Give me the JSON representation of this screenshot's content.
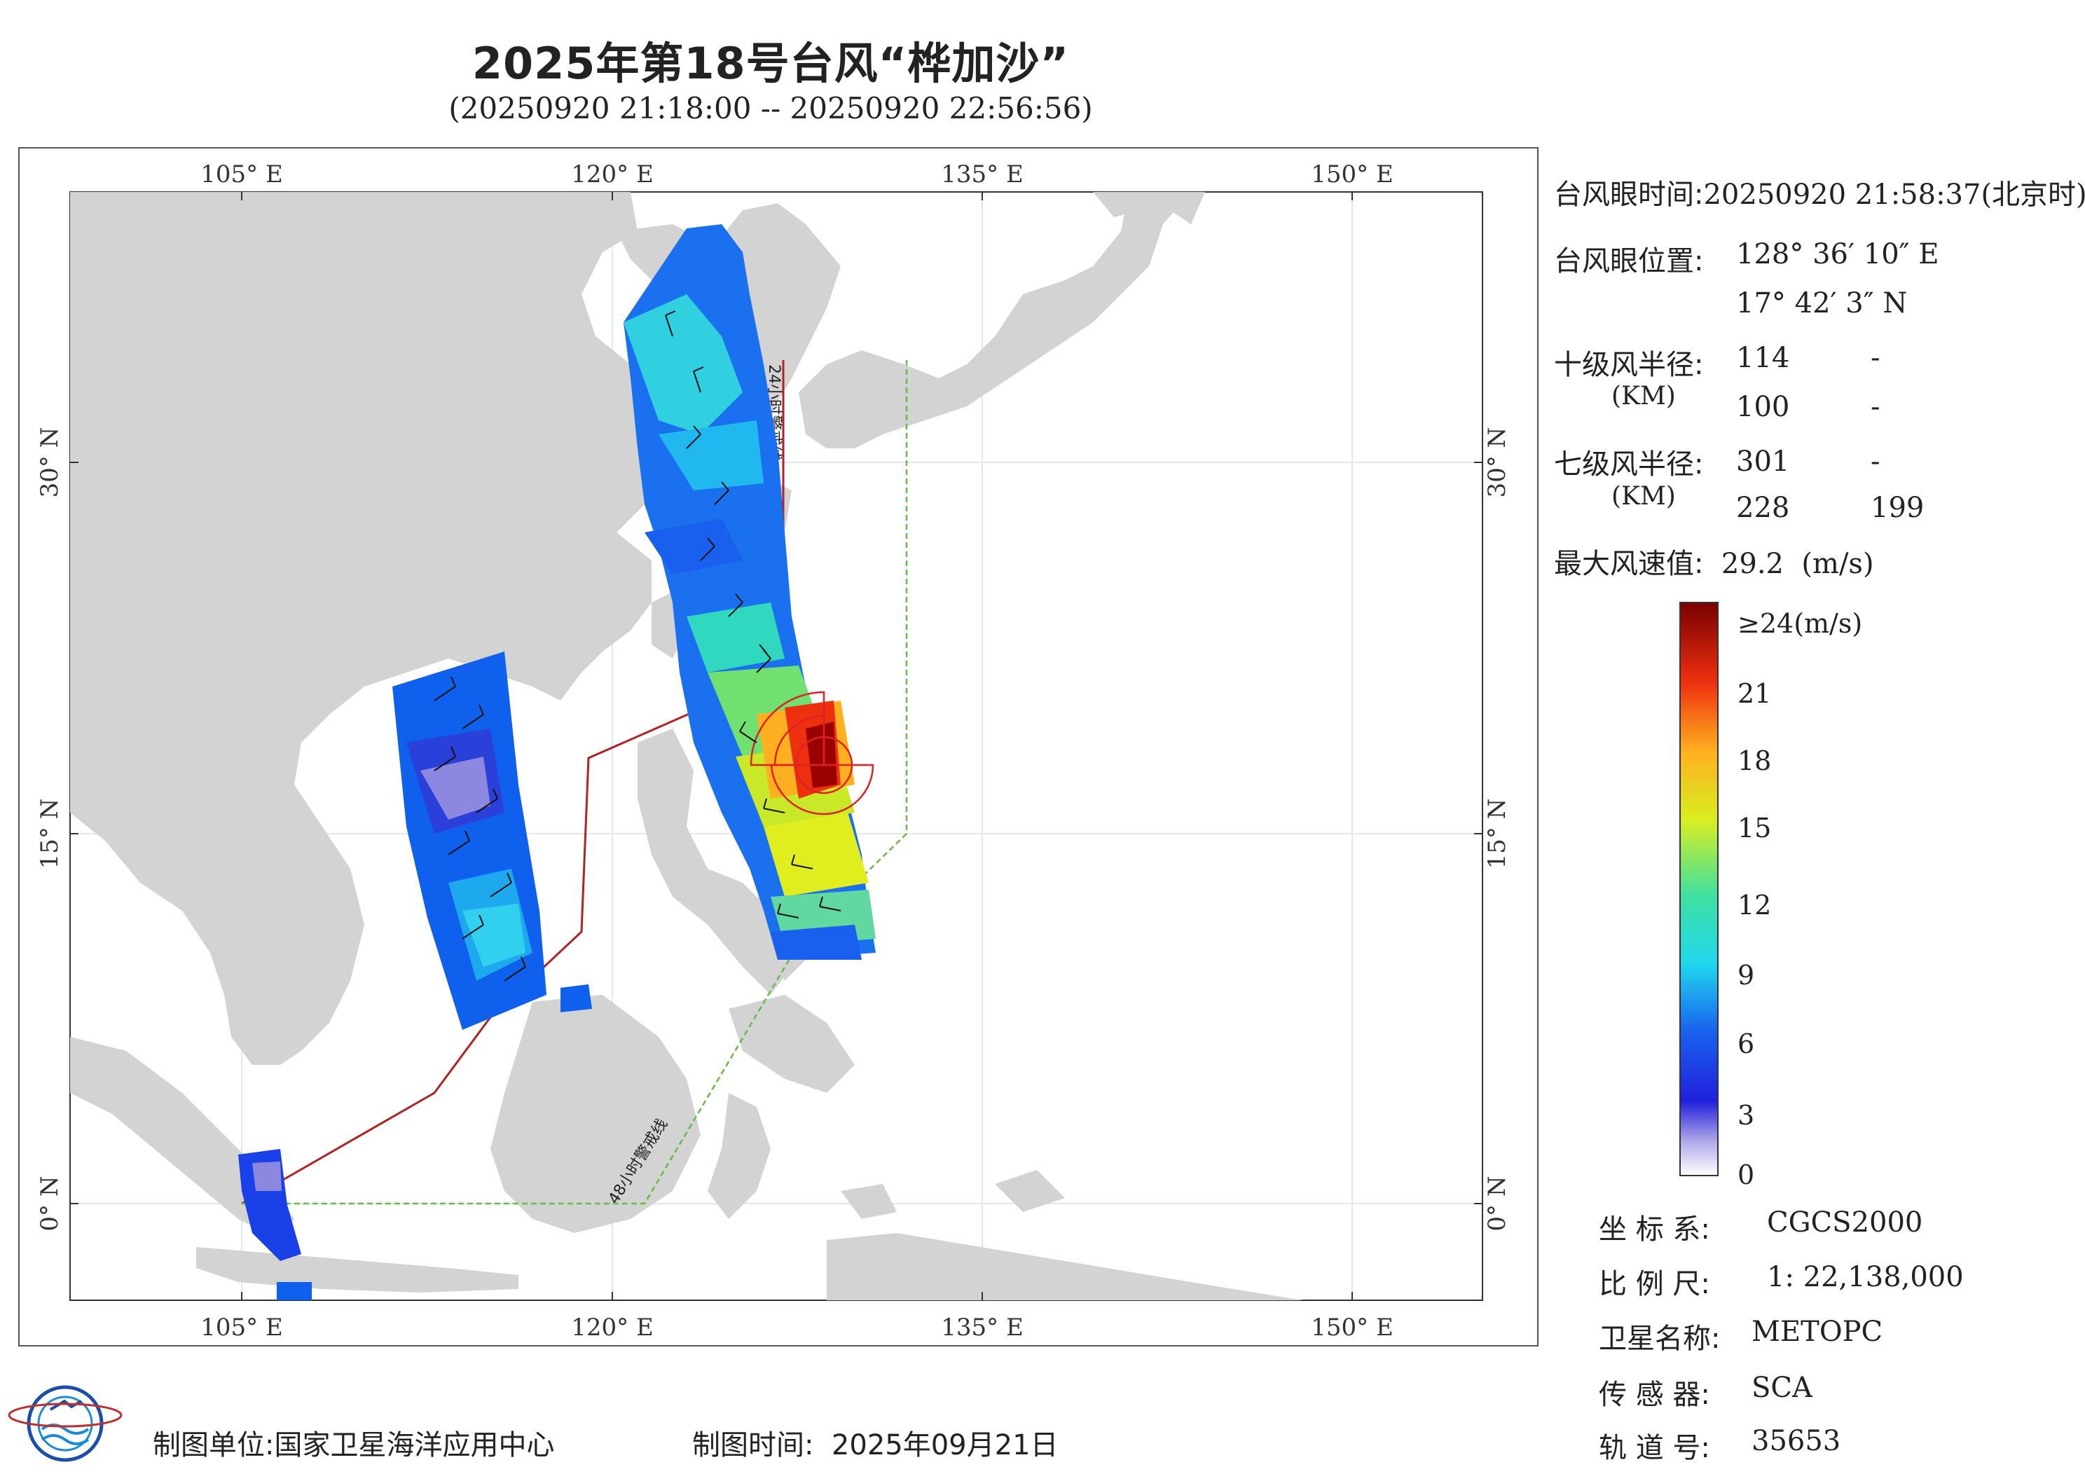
{
  "title": "2025年第18号台风“桦加沙”",
  "subtitle": "(20250920 21:18:00 -- 20250920 22:56:56)",
  "map": {
    "lon_ticks": [
      "105° E",
      "120° E",
      "135° E",
      "150° E"
    ],
    "lat_ticks": [
      "30° N",
      "15° N",
      "0° N"
    ],
    "warning_line_24h": "24小时警戒线",
    "warning_line_48h": "48小时警戒线",
    "colors": {
      "land": "#d3d3d3",
      "ocean": "#ffffff",
      "warning_24h": "#b22222",
      "warning_48h": "#66bb44",
      "wind_radius": "#dd2222"
    }
  },
  "info": {
    "eye_time_label": "台风眼时间:",
    "eye_time_value": "20250920 21:58:37(北京时)",
    "eye_pos_label": "台风眼位置:",
    "eye_lon": "128° 36′ 10″ E",
    "eye_lat": "17° 42′ 3″ N",
    "r10_label": "十级风半径:",
    "r10_unit": "(KM)",
    "r10_row1": [
      "114",
      "-"
    ],
    "r10_row2": [
      "100",
      "-"
    ],
    "r7_label": "七级风半径:",
    "r7_unit": "(KM)",
    "r7_row1": [
      "301",
      "-"
    ],
    "r7_row2": [
      "228",
      "199"
    ],
    "max_wind_label": "最大风速值:",
    "max_wind_value": "29.2  (m/s)"
  },
  "colorbar": {
    "labels": [
      "≥24(m/s)",
      "21",
      "18",
      "15",
      "12",
      "9",
      "6",
      "3",
      "0"
    ]
  },
  "meta": {
    "crs_label": "坐 标 系:",
    "crs_value": "CGCS2000",
    "scale_label": "比 例 尺:",
    "scale_value": "1: 22,138,000",
    "satellite_label": "卫星名称:",
    "satellite_value": "METOPC",
    "sensor_label": "传 感 器:",
    "sensor_value": "SCA",
    "orbit_label": "轨 道 号:",
    "orbit_value": "35653"
  },
  "footer": {
    "producer_label": "制图单位:",
    "producer_value": "国家卫星海洋应用中心",
    "date_label": "制图时间:",
    "date_value": "2025年09月21日"
  }
}
